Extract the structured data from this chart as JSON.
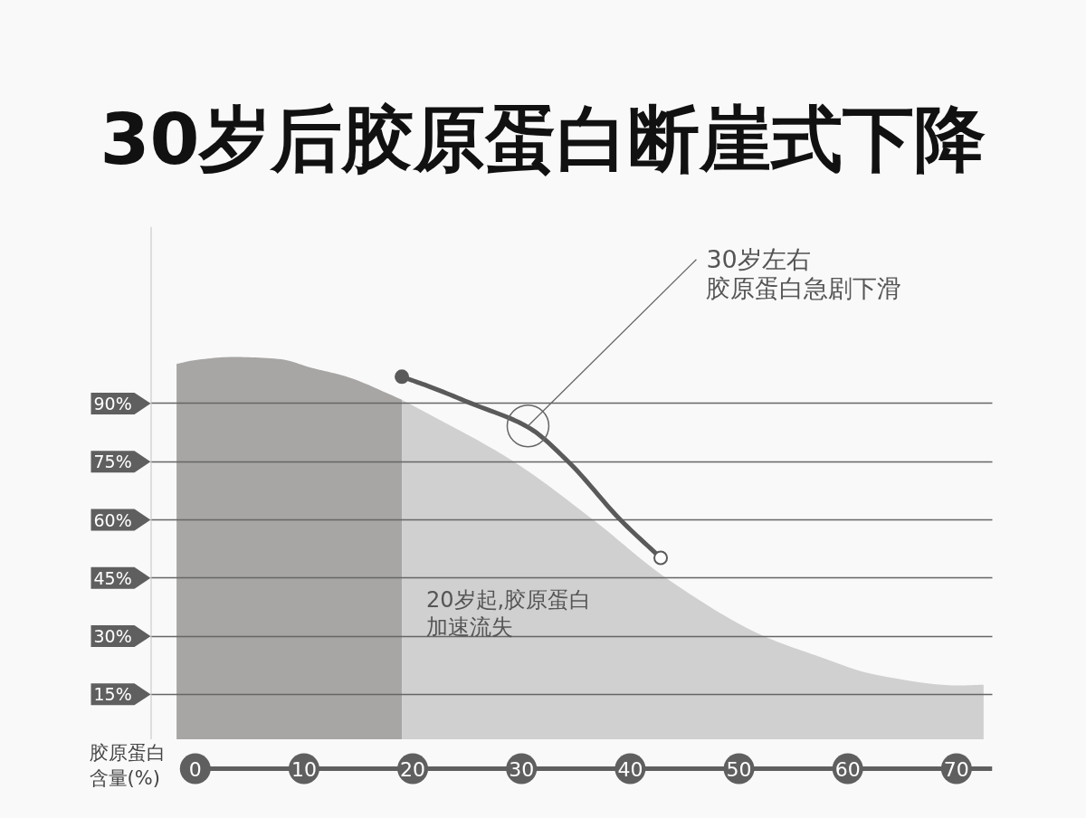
{
  "chart_data": {
    "type": "area",
    "title": "30岁后胶原蛋白断崖式下降",
    "ylabel": "胶原蛋白含量(%)",
    "xlim": [
      -4.1,
      73.3
    ],
    "xticks": [
      0,
      10,
      20,
      30,
      40,
      50,
      60,
      70
    ],
    "ylim": [
      3.3,
      135.6
    ],
    "yticks": [
      {
        "value": 15,
        "label": "15%"
      },
      {
        "value": 30,
        "label": "30%"
      },
      {
        "value": 45,
        "label": "45%"
      },
      {
        "value": 60,
        "label": "60%"
      },
      {
        "value": 75,
        "label": "75%"
      },
      {
        "value": 90,
        "label": "90%"
      }
    ],
    "grid": "y",
    "series": [
      {
        "color": "#a7a6a5",
        "x": [
          -1.72,
          0.0,
          3.47,
          7.6,
          10.96,
          13.73,
          19.0
        ],
        "values": [
          100.2,
          101.2,
          102.0,
          101.5,
          99.0,
          97.1,
          91.0
        ]
      },
      {
        "color": "#d0d0d0",
        "x": [
          19.0,
          29.3,
          36.6,
          43.3,
          52.3,
          57.0,
          62.5,
          70.3,
          72.5
        ],
        "values": [
          91.0,
          75.0,
          60.0,
          45.0,
          30.0,
          25.1,
          20.1,
          17.3,
          17.5
        ]
      },
      {
        "type": "line",
        "color": "#5a5a5a",
        "x": [
          19.0,
          21.5,
          25.4,
          30.6,
          34.3,
          39.1,
          42.8
        ],
        "values": [
          96.9,
          94.4,
          90.0,
          83.9,
          75.0,
          60.0,
          50.2
        ]
      },
      {
        "type": "scatter",
        "marker": "circle",
        "color": "#5a5a5a",
        "colors": [
          "#5a5a5a",
          "#ffffff"
        ],
        "x": [
          19.0,
          42.8
        ],
        "values": [
          96.9,
          50.2
        ]
      }
    ],
    "annotations": [
      {
        "text": "30岁左右",
        "x": 30.6,
        "y": 84.2
      },
      "胶原蛋白急剧下滑",
      {
        "text": "20岁起,胶原蛋白加速流失",
        "x": 19.0,
        "y": 36.7
      }
    ]
  }
}
